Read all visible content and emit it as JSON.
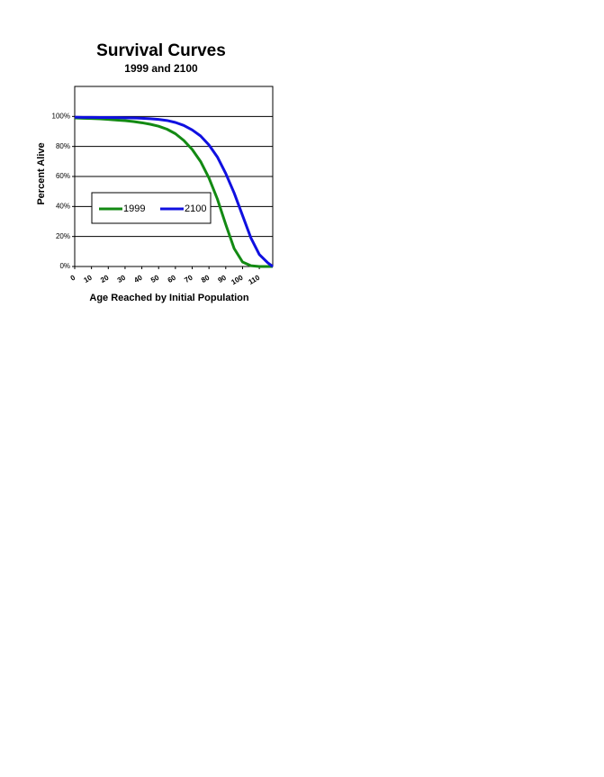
{
  "chart_data": {
    "type": "line",
    "title": "Survival Curves",
    "subtitle": "1999 and 2100",
    "x_label": "Age Reached by Initial Population",
    "y_label": "Percent Alive",
    "x": [
      0,
      5,
      10,
      15,
      20,
      25,
      30,
      35,
      40,
      45,
      50,
      55,
      60,
      65,
      70,
      75,
      80,
      85,
      90,
      95,
      100,
      105,
      110,
      115,
      118
    ],
    "series": [
      {
        "name": "1999",
        "color": "#138a13",
        "values": [
          99,
          98.8,
          98.6,
          98.4,
          98,
          97.6,
          97.2,
          96.6,
          95.8,
          94.8,
          93.5,
          91.5,
          88.5,
          84,
          78,
          70,
          59,
          45,
          28,
          12,
          3,
          0.5,
          0,
          0,
          0
        ]
      },
      {
        "name": "2100",
        "color": "#1010e0",
        "values": [
          99.5,
          99.4,
          99.4,
          99.3,
          99.3,
          99.2,
          99.1,
          99,
          98.8,
          98.5,
          98,
          97.3,
          96,
          94,
          91,
          87,
          81,
          73,
          62,
          49,
          34,
          19,
          8,
          2.5,
          0
        ]
      }
    ],
    "xlim": [
      0,
      118
    ],
    "xticks": [
      0,
      10,
      20,
      30,
      40,
      50,
      60,
      70,
      80,
      90,
      100,
      110
    ],
    "ylim": [
      0,
      120
    ],
    "yticks": [
      {
        "value": 0,
        "label": "0%"
      },
      {
        "value": 20,
        "label": "20%"
      },
      {
        "value": 40,
        "label": "40%"
      },
      {
        "value": 60,
        "label": "60%"
      },
      {
        "value": 80,
        "label": "80%"
      },
      {
        "value": 100,
        "label": "100%"
      }
    ],
    "grid": true
  }
}
